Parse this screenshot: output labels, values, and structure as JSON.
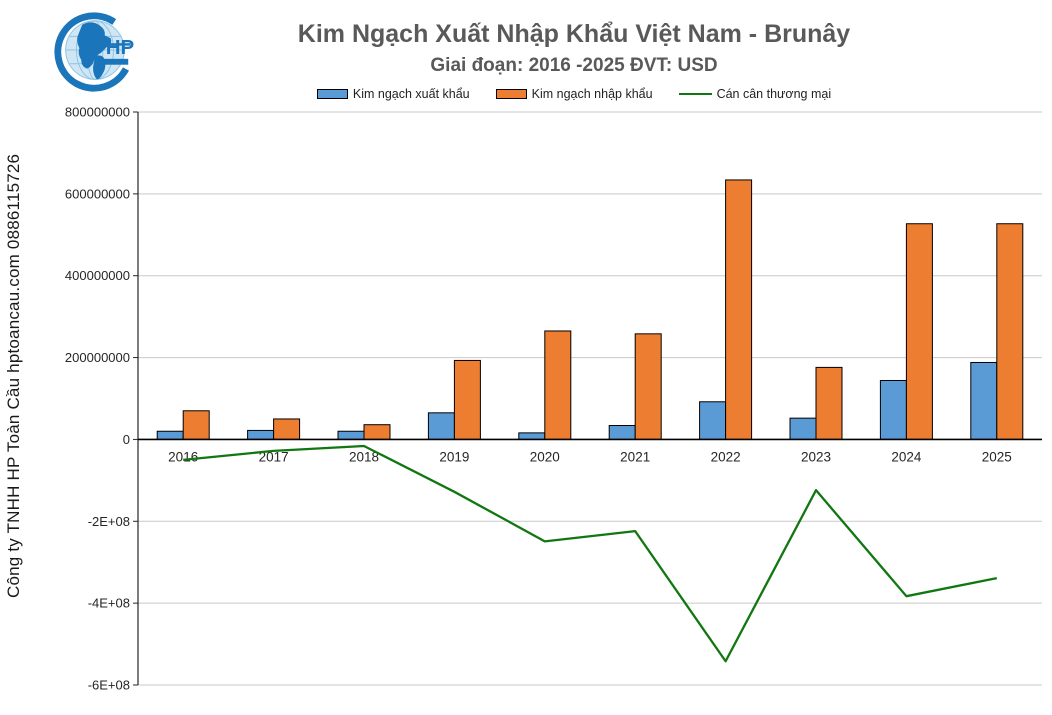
{
  "watermark": "Công ty TNHH HP Toàn Cầu hptoancau.com 0886115726",
  "logo": {
    "monogram": "HP"
  },
  "header": {
    "title": "Kim Ngạch Xuất Nhập Khẩu Việt Nam - Brunây",
    "subtitle": "Giai đoạn: 2016 -2025  ĐVT: USD"
  },
  "colors": {
    "export_bar": "#5B9BD5",
    "import_bar": "#ED7D31",
    "balance_line": "#117711",
    "bar_border": "#000000",
    "grid": "#C9C9C9",
    "axis": "#262626",
    "title_gray": "#595959",
    "logo_blue": "#1B75BB"
  },
  "chart_data": {
    "type": "combo",
    "title": "Kim Ngạch Xuất Nhập Khẩu Việt Nam - Brunây",
    "subtitle": "Giai đoạn: 2016 -2025  ĐVT: USD",
    "legend_position": "top",
    "grid": true,
    "categories": [
      "2016",
      "2017",
      "2018",
      "2019",
      "2020",
      "2021",
      "2022",
      "2023",
      "2024",
      "2025"
    ],
    "series": [
      {
        "key": "export",
        "name": "Kim ngạch xuất khẩu",
        "type": "bar",
        "color": "#5B9BD5",
        "values": [
          20000000,
          22000000,
          20000000,
          65000000,
          16000000,
          34000000,
          92000000,
          52000000,
          144000000,
          188000000
        ]
      },
      {
        "key": "import",
        "name": "Kim ngạch nhập khẩu",
        "type": "bar",
        "color": "#ED7D31",
        "values": [
          70000000,
          50000000,
          36000000,
          193000000,
          265000000,
          258000000,
          634000000,
          176000000,
          527000000,
          527000000
        ]
      },
      {
        "key": "balance",
        "name": "Cán cân thương mại",
        "type": "line",
        "color": "#117711",
        "values": [
          -50000000,
          -28000000,
          -16000000,
          -128000000,
          -249000000,
          -224000000,
          -542000000,
          -124000000,
          -383000000,
          -339000000
        ]
      }
    ],
    "y_axis": {
      "ylim": [
        -600000000,
        800000000
      ],
      "ticks": [
        800000000,
        600000000,
        400000000,
        200000000,
        0,
        -200000000,
        -400000000,
        -600000000
      ],
      "tick_labels": [
        "800000000",
        "600000000",
        "400000000",
        "200000000",
        "0",
        "-2E+08",
        "-4E+08",
        "-6E+08"
      ]
    }
  }
}
